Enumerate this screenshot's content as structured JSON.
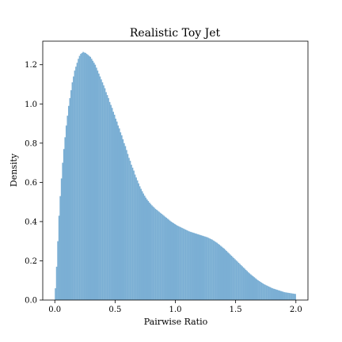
{
  "chart_data": {
    "type": "bar",
    "title": "Realistic Toy Jet",
    "xlabel": "Pairwise Ratio",
    "ylabel": "Density",
    "xlim": [
      -0.1,
      2.1
    ],
    "ylim": [
      0,
      1.32
    ],
    "xticks": [
      "0.0",
      "0.5",
      "1.0",
      "1.5",
      "2.0"
    ],
    "yticks": [
      "0.0",
      "0.2",
      "0.4",
      "0.6",
      "0.8",
      "1.0",
      "1.2"
    ],
    "grid": false,
    "bar_color": "#7bafd4",
    "bin_width": 0.01,
    "bins_start": 0.0,
    "values": [
      0.06,
      0.17,
      0.3,
      0.43,
      0.53,
      0.62,
      0.7,
      0.77,
      0.83,
      0.89,
      0.94,
      0.99,
      1.03,
      1.07,
      1.11,
      1.14,
      1.17,
      1.19,
      1.21,
      1.23,
      1.245,
      1.255,
      1.26,
      1.265,
      1.262,
      1.26,
      1.255,
      1.25,
      1.245,
      1.24,
      1.23,
      1.22,
      1.21,
      1.2,
      1.185,
      1.17,
      1.155,
      1.14,
      1.125,
      1.11,
      1.095,
      1.08,
      1.06,
      1.045,
      1.03,
      1.01,
      0.995,
      0.98,
      0.96,
      0.945,
      0.925,
      0.91,
      0.89,
      0.875,
      0.855,
      0.84,
      0.82,
      0.8,
      0.785,
      0.765,
      0.745,
      0.725,
      0.71,
      0.69,
      0.675,
      0.66,
      0.64,
      0.625,
      0.61,
      0.595,
      0.58,
      0.567,
      0.555,
      0.543,
      0.532,
      0.522,
      0.513,
      0.505,
      0.497,
      0.49,
      0.483,
      0.477,
      0.471,
      0.465,
      0.46,
      0.455,
      0.45,
      0.445,
      0.44,
      0.435,
      0.43,
      0.425,
      0.42,
      0.415,
      0.41,
      0.405,
      0.4,
      0.396,
      0.392,
      0.388,
      0.384,
      0.38,
      0.377,
      0.374,
      0.371,
      0.368,
      0.365,
      0.362,
      0.359,
      0.356,
      0.353,
      0.35,
      0.348,
      0.346,
      0.344,
      0.342,
      0.34,
      0.338,
      0.336,
      0.334,
      0.332,
      0.33,
      0.328,
      0.326,
      0.324,
      0.322,
      0.32,
      0.317,
      0.314,
      0.311,
      0.308,
      0.304,
      0.3,
      0.296,
      0.292,
      0.287,
      0.282,
      0.277,
      0.272,
      0.267,
      0.262,
      0.256,
      0.25,
      0.244,
      0.238,
      0.232,
      0.226,
      0.22,
      0.214,
      0.208,
      0.202,
      0.196,
      0.19,
      0.184,
      0.178,
      0.172,
      0.166,
      0.16,
      0.154,
      0.148,
      0.142,
      0.136,
      0.131,
      0.126,
      0.121,
      0.116,
      0.111,
      0.106,
      0.101,
      0.097,
      0.093,
      0.089,
      0.085,
      0.081,
      0.078,
      0.075,
      0.072,
      0.069,
      0.066,
      0.063,
      0.06,
      0.058,
      0.056,
      0.054,
      0.052,
      0.05,
      0.048,
      0.046,
      0.044,
      0.042,
      0.04,
      0.039,
      0.038,
      0.037,
      0.036,
      0.035,
      0.034,
      0.033,
      0.032,
      0.031
    ]
  }
}
